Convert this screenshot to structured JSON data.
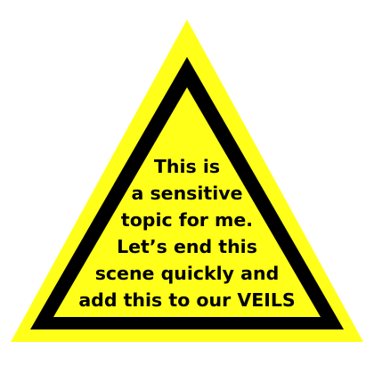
{
  "sign": {
    "colors": {
      "fill": "#FFFF1A",
      "border": "#000000",
      "text": "#000000"
    },
    "lines": [
      "This is",
      "a sensitive",
      "topic for me.",
      "Let’s end this",
      "scene quickly and",
      "add this to our VEILS"
    ]
  }
}
